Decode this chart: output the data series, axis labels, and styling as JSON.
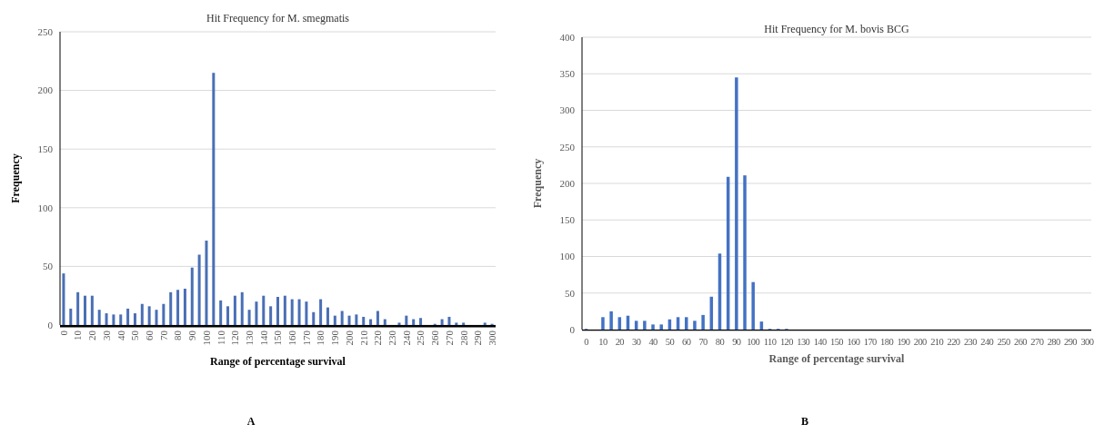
{
  "chart_data": [
    {
      "type": "bar",
      "title": "Hit Frequency for M. smegmatis",
      "xlabel": "Range of percentage survival",
      "ylabel": "Frequency",
      "categories": [
        "0",
        null,
        "10",
        null,
        "20",
        null,
        "30",
        null,
        "40",
        null,
        "50",
        null,
        "60",
        null,
        "70",
        null,
        "80",
        null,
        "90",
        null,
        "100",
        null,
        "110",
        null,
        "120",
        null,
        "130",
        null,
        "140",
        null,
        "150",
        null,
        "160",
        null,
        "170",
        null,
        "180",
        null,
        "190",
        null,
        "200",
        null,
        "210",
        null,
        "220",
        null,
        "230",
        null,
        "240",
        null,
        "250",
        null,
        "260",
        null,
        "270",
        null,
        "280",
        null,
        "290",
        null,
        "300"
      ],
      "values": [
        44,
        14,
        28,
        25,
        25,
        13,
        10,
        9,
        9,
        14,
        10,
        18,
        16,
        13,
        18,
        28,
        30,
        31,
        49,
        60,
        72,
        215,
        21,
        16,
        25,
        28,
        13,
        20,
        25,
        16,
        24,
        25,
        22,
        22,
        20,
        11,
        22,
        15,
        8,
        12,
        8,
        9,
        7,
        5,
        12,
        5,
        0,
        2,
        8,
        5,
        6,
        0,
        1,
        5,
        7,
        2,
        2,
        0,
        0,
        2,
        1
      ],
      "color": "#4a6fb5",
      "ylim": [
        0,
        250
      ],
      "yticks": [
        0,
        50,
        100,
        150,
        200,
        250
      ],
      "grid": "y",
      "annotations": [
        "A"
      ]
    },
    {
      "type": "bar",
      "title": "Hit Frequency for M. bovis BCG",
      "xlabel": "Range of percentage survival",
      "ylabel": "Frequency",
      "categories": [
        "0",
        null,
        "10",
        null,
        "20",
        null,
        "30",
        null,
        "40",
        null,
        "50",
        null,
        "60",
        null,
        "70",
        null,
        "80",
        null,
        "90",
        null,
        "100",
        null,
        "110",
        null,
        "120",
        null,
        "130",
        null,
        "140",
        null,
        "150",
        null,
        "160",
        null,
        "170",
        null,
        "180",
        null,
        "190",
        null,
        "200",
        null,
        "210",
        null,
        "220",
        null,
        "230",
        null,
        "240",
        null,
        "250",
        null,
        "260",
        null,
        "270",
        null,
        "280",
        null,
        "290",
        null,
        "300"
      ],
      "values": [
        1,
        0,
        17,
        25,
        17,
        19,
        12,
        12,
        7,
        7,
        14,
        17,
        17,
        12,
        20,
        45,
        104,
        209,
        345,
        211,
        65,
        11,
        1,
        1,
        1,
        0,
        0,
        0,
        0,
        0,
        0,
        0,
        0,
        0,
        0,
        0,
        0,
        0,
        0,
        0,
        0,
        0,
        0,
        0,
        0,
        0,
        0,
        0,
        0,
        0,
        0,
        0,
        0,
        0,
        0,
        0,
        0,
        0,
        0,
        0,
        0
      ],
      "color": "#4472c4",
      "ylim": [
        0,
        400
      ],
      "yticks": [
        0,
        50,
        100,
        150,
        200,
        250,
        300,
        350,
        400
      ],
      "grid": "y",
      "annotations": [
        "B"
      ]
    }
  ]
}
